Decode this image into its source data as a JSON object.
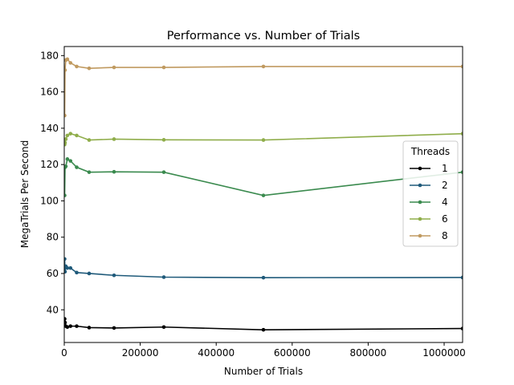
{
  "chart_data": {
    "type": "line",
    "title": "Performance vs. Number of Trials",
    "xlabel": "Number of Trials",
    "ylabel": "MegaTrials Per Second",
    "xlim": [
      0,
      1048576
    ],
    "ylim": [
      22,
      185
    ],
    "xticks": [
      0,
      200000,
      400000,
      600000,
      800000,
      1000000
    ],
    "xtick_labels": [
      "0",
      "200000",
      "400000",
      "600000",
      "800000",
      "1000000"
    ],
    "yticks": [
      40,
      60,
      80,
      100,
      120,
      140,
      160,
      180
    ],
    "ytick_labels": [
      "40",
      "60",
      "80",
      "100",
      "120",
      "140",
      "160",
      "180"
    ],
    "grid": false,
    "legend": {
      "title": "Threads",
      "placement": "right"
    },
    "x": [
      1024,
      2048,
      4096,
      8192,
      16384,
      32768,
      65536,
      131072,
      262144,
      524288,
      1048576
    ],
    "series": [
      {
        "name": "1",
        "color": "#000000",
        "values": [
          35,
          33,
          31,
          30.5,
          31,
          31,
          30.2,
          30,
          30.5,
          29,
          29.7
        ]
      },
      {
        "name": "2",
        "color": "#1f5a7a",
        "values": [
          68,
          61,
          64,
          63,
          63,
          60.5,
          60,
          59,
          58,
          57.7,
          57.8
        ]
      },
      {
        "name": "4",
        "color": "#3a8a4e",
        "values": [
          103,
          118.5,
          119,
          123,
          122,
          118.5,
          115.8,
          116,
          115.8,
          103,
          115.8
        ]
      },
      {
        "name": "6",
        "color": "#8fad4a",
        "values": [
          131,
          132,
          134,
          136,
          137,
          136,
          133.5,
          134,
          133.6,
          133.5,
          137
        ]
      },
      {
        "name": "8",
        "color": "#c09a60",
        "values": [
          147,
          172,
          177.5,
          178,
          176,
          174,
          173,
          173.5,
          173.5,
          174,
          174
        ]
      }
    ]
  }
}
